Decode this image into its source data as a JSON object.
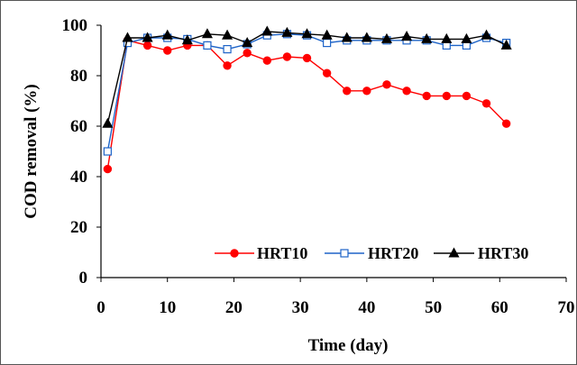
{
  "chart_data": {
    "type": "line",
    "xlabel": "Time (day)",
    "ylabel": "COD removal (%)",
    "xlim": [
      0,
      70
    ],
    "ylim": [
      0,
      100
    ],
    "x_ticks": [
      0,
      10,
      20,
      30,
      40,
      50,
      60,
      70
    ],
    "y_ticks": [
      0,
      20,
      40,
      60,
      80,
      100
    ],
    "grid": false,
    "legend_position": "bottom-right",
    "series": [
      {
        "name": "HRT10",
        "color": "#ff0000",
        "marker": "circle",
        "x": [
          1,
          4,
          7,
          10,
          13,
          16,
          19,
          22,
          25,
          28,
          31,
          34,
          37,
          40,
          43,
          46,
          49,
          52,
          55,
          58,
          61
        ],
        "y": [
          43,
          94,
          92,
          90,
          92,
          92,
          84,
          89,
          86,
          87.5,
          87,
          81,
          74,
          74,
          76.5,
          74,
          72,
          72,
          72,
          69,
          61
        ]
      },
      {
        "name": "HRT20",
        "color": "#1e64c8",
        "marker": "square",
        "x": [
          1,
          4,
          7,
          10,
          13,
          16,
          19,
          22,
          25,
          28,
          31,
          34,
          37,
          40,
          43,
          46,
          49,
          52,
          55,
          58,
          61
        ],
        "y": [
          50,
          93,
          95,
          95,
          94.5,
          92,
          90.5,
          92.5,
          96,
          96.5,
          96,
          93,
          94,
          94,
          94,
          94,
          94,
          92,
          92,
          95,
          93
        ]
      },
      {
        "name": "HRT30",
        "color": "#000000",
        "marker": "triangle",
        "x": [
          1,
          4,
          7,
          10,
          13,
          16,
          19,
          22,
          25,
          28,
          31,
          34,
          37,
          40,
          43,
          46,
          49,
          52,
          55,
          58,
          61
        ],
        "y": [
          61,
          95,
          95,
          96,
          94,
          96.5,
          96,
          93,
          97.5,
          97,
          96.5,
          96,
          95,
          95,
          94.5,
          95.5,
          94.5,
          94.5,
          94.5,
          96,
          92
        ]
      }
    ]
  }
}
